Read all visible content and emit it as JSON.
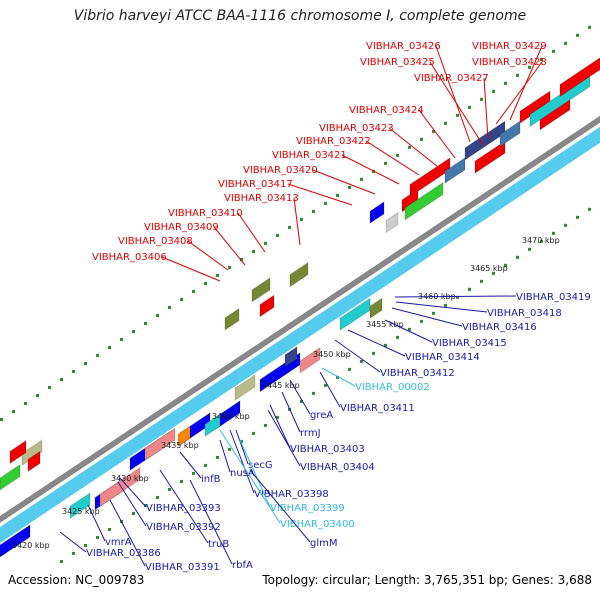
{
  "title": "Vibrio harveyi ATCC BAA-1116 chromosome I, complete genome",
  "footer": {
    "accession": "Accession: NC_009783",
    "topology": "Topology: circular; Length: 3,765,351 bp; Genes: 3,688"
  },
  "colors": {
    "label_red": "#dd0000",
    "label_blue": "#1a1aaa",
    "label_cyan": "#33bbdd",
    "axis_cyan": "#55ccee",
    "gene_blue": "#0000ee",
    "gene_red": "#ee0000",
    "gene_green": "#33cc33",
    "gene_olive": "#778833",
    "gene_teal": "#22cccc",
    "gene_pink": "#ee8888"
  },
  "ticks": [
    "3420 kbp",
    "3425 kbp",
    "3430 kbp",
    "3435 kbp",
    "3440 kbp",
    "3445 kbp",
    "3450 kbp",
    "3455 kbp",
    "3460 kbp",
    "3465 kbp",
    "3470 kbp"
  ],
  "top_labels": [
    {
      "text": "VIBHAR_03426"
    },
    {
      "text": "VIBHAR_03425"
    },
    {
      "text": "VIBHAR_03429"
    },
    {
      "text": "VIBHAR_03428"
    },
    {
      "text": "VIBHAR_03427"
    },
    {
      "text": "VIBHAR_03424"
    },
    {
      "text": "VIBHAR_03423"
    },
    {
      "text": "VIBHAR_03422"
    },
    {
      "text": "VIBHAR_03421"
    },
    {
      "text": "VIBHAR_03420"
    },
    {
      "text": "VIBHAR_03417"
    },
    {
      "text": "VIBHAR_03413"
    },
    {
      "text": "VIBHAR_03410"
    },
    {
      "text": "VIBHAR_03409"
    },
    {
      "text": "VIBHAR_03408"
    },
    {
      "text": "VIBHAR_03406"
    }
  ],
  "bottom_labels": [
    {
      "text": "VIBHAR_03419",
      "color": "blue"
    },
    {
      "text": "VIBHAR_03418",
      "color": "blue"
    },
    {
      "text": "VIBHAR_03416",
      "color": "blue"
    },
    {
      "text": "VIBHAR_03415",
      "color": "blue"
    },
    {
      "text": "VIBHAR_03414",
      "color": "blue"
    },
    {
      "text": "VIBHAR_03412",
      "color": "blue"
    },
    {
      "text": "VIBHAR_00002",
      "color": "cyan"
    },
    {
      "text": "VIBHAR_03411",
      "color": "blue"
    },
    {
      "text": "greA",
      "color": "blue"
    },
    {
      "text": "rrmJ",
      "color": "blue"
    },
    {
      "text": "VIBHAR_03403",
      "color": "blue"
    },
    {
      "text": "secG",
      "color": "blue"
    },
    {
      "text": "VIBHAR_03404",
      "color": "blue"
    },
    {
      "text": "nusA",
      "color": "blue"
    },
    {
      "text": "infB",
      "color": "blue"
    },
    {
      "text": "VIBHAR_03398",
      "color": "blue"
    },
    {
      "text": "VIBHAR_03399",
      "color": "cyan"
    },
    {
      "text": "VIBHAR_03393",
      "color": "blue"
    },
    {
      "text": "VIBHAR_03400",
      "color": "cyan"
    },
    {
      "text": "VIBHAR_03392",
      "color": "blue"
    },
    {
      "text": "glmM",
      "color": "blue"
    },
    {
      "text": "truB",
      "color": "blue"
    },
    {
      "text": "vmrA",
      "color": "blue"
    },
    {
      "text": "VIBHAR_03386",
      "color": "blue"
    },
    {
      "text": "VIBHAR_03391",
      "color": "blue"
    },
    {
      "text": "rbfA",
      "color": "blue"
    }
  ]
}
